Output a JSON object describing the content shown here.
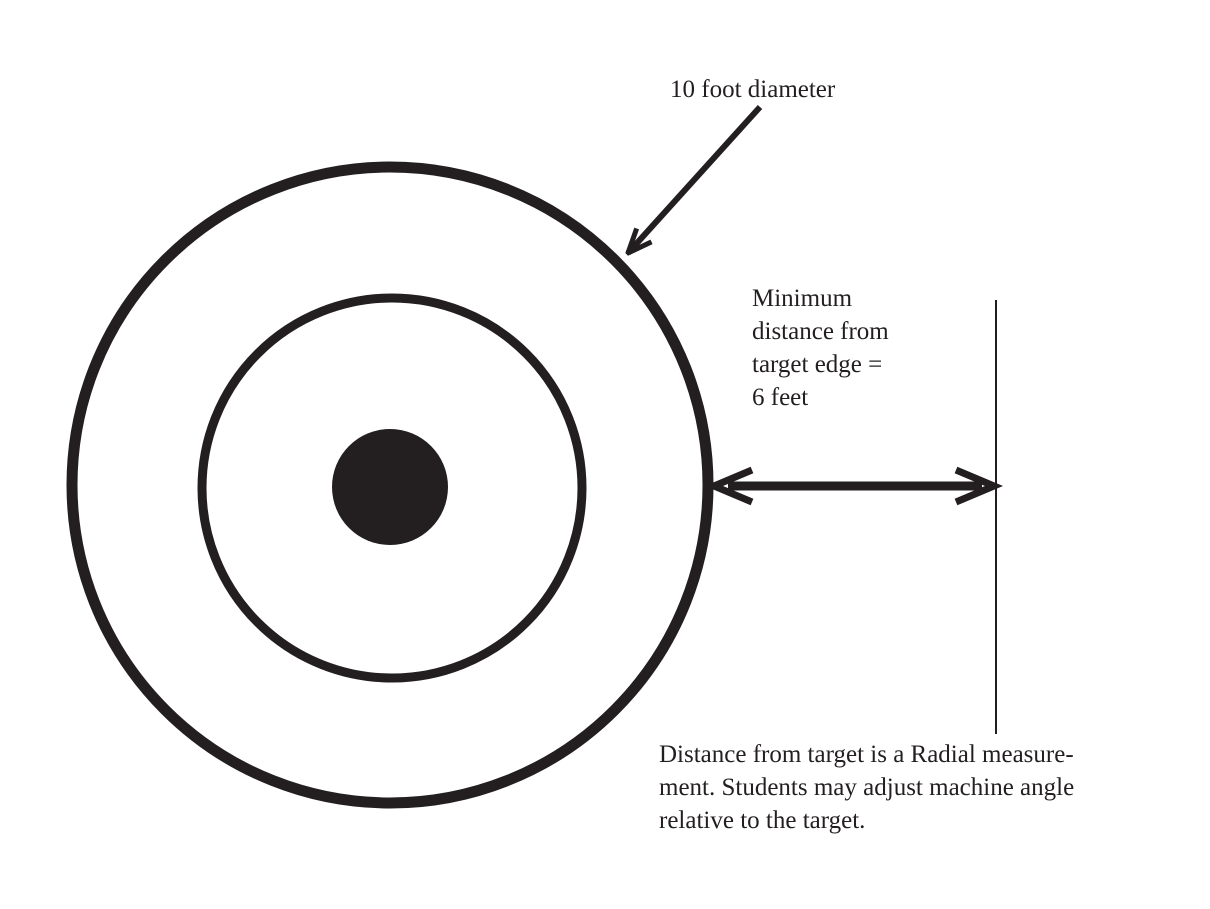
{
  "diagram": {
    "diameter_label": "10 foot diameter",
    "min_distance_label": {
      "lines": [
        "Minimum",
        "distance from",
        "target edge =",
        "6 feet"
      ]
    },
    "note": {
      "lines": [
        "Distance from target is a Radial measure-",
        "ment. Students may adjust machine angle",
        "relative to the target."
      ]
    }
  },
  "colors": {
    "ink": "#231f20",
    "background": "#ffffff"
  }
}
